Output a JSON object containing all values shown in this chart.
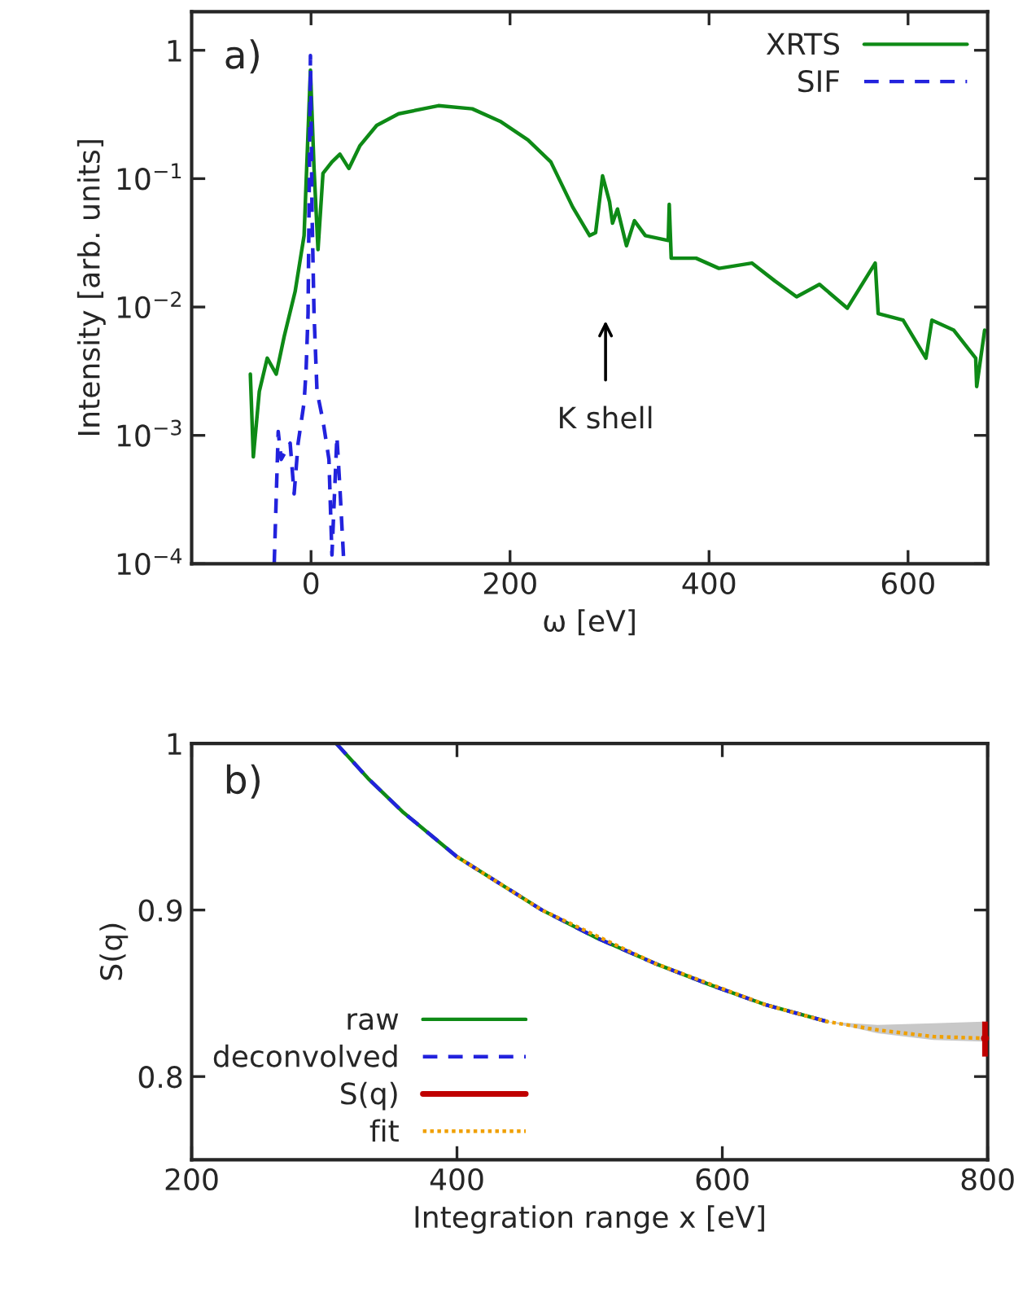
{
  "chart_data": [
    {
      "type": "line",
      "xlabel": "ω [eV]",
      "ylabel": "Intensity [arb. units]",
      "log": "y",
      "xlim": [
        -120,
        680
      ],
      "xticks": [
        0,
        200,
        400,
        600
      ],
      "ylim": [
        0.0001,
        2
      ],
      "yticks": [
        {
          "value": 0.0001,
          "label": "10$^{−4}$"
        },
        {
          "value": 0.001,
          "label": "10$^{−3}$"
        },
        {
          "value": 0.01,
          "label": "10$^{−2}$"
        },
        {
          "value": 0.1,
          "label": "10$^{−1}$"
        },
        {
          "value": 1,
          "label": "1"
        }
      ],
      "legend": "top right",
      "grid": false,
      "annotations": [
        "a)",
        "K shell"
      ],
      "series": [
        {
          "name": "XRTS",
          "color": "#0e8a16",
          "line_style": "solid",
          "x": [
            -61,
            -58,
            -52,
            -44,
            -35,
            -27,
            -16,
            -7,
            -0.6,
            3,
            7,
            12,
            21,
            29,
            38,
            49,
            66,
            88,
            128,
            162,
            190,
            218,
            241,
            263,
            280,
            286,
            293,
            300,
            303,
            308,
            317,
            325,
            336,
            359,
            360,
            362,
            387,
            410,
            443,
            466,
            488,
            511,
            539,
            567,
            570,
            595,
            618,
            624,
            646,
            668,
            669,
            677
          ],
          "values": [
            0.003,
            0.00068,
            0.0022,
            0.004,
            0.003,
            0.0059,
            0.0132,
            0.036,
            0.7,
            0.12,
            0.028,
            0.11,
            0.135,
            0.155,
            0.12,
            0.18,
            0.26,
            0.32,
            0.37,
            0.35,
            0.28,
            0.2,
            0.135,
            0.06,
            0.036,
            0.038,
            0.105,
            0.066,
            0.045,
            0.058,
            0.03,
            0.047,
            0.036,
            0.033,
            0.063,
            0.024,
            0.024,
            0.02,
            0.022,
            0.016,
            0.012,
            0.015,
            0.0098,
            0.022,
            0.0089,
            0.0079,
            0.004,
            0.0079,
            0.0066,
            0.004,
            0.0024,
            0.0066
          ]
        },
        {
          "name": "SIF",
          "color": "#2222dd",
          "line_style": "dashed",
          "x": [
            -37,
            -33,
            -30,
            -21,
            -17,
            -13,
            -7,
            -5,
            -3,
            -0.6,
            1,
            3,
            6,
            12,
            18,
            21,
            26,
            29,
            33
          ],
          "values": [
            0.0001,
            0.00107,
            0.00065,
            0.00087,
            0.00035,
            0.00087,
            0.0018,
            0.0032,
            0.0089,
            0.91,
            0.054,
            0.0089,
            0.0022,
            0.0013,
            0.00065,
            0.000117,
            0.00098,
            0.00039,
            0.0001
          ]
        }
      ]
    },
    {
      "type": "line",
      "xlabel": "Integration range x [eV]",
      "ylabel": "S(q)",
      "xlim": [
        200,
        800
      ],
      "xticks": [
        200,
        400,
        600,
        800
      ],
      "ylim": [
        0.75,
        1
      ],
      "yticks": [
        0.8,
        0.9,
        {
          "value": 1,
          "label": "1"
        }
      ],
      "legend": "lower left",
      "grid": false,
      "annotations": [
        "b)"
      ],
      "series": [
        {
          "name": "raw",
          "color": "#0e8a16",
          "line_style": "solid",
          "x": [
            309,
            333,
            359,
            400,
            430,
            464,
            506,
            549,
            591,
            633,
            679
          ],
          "values": [
            1.0,
            0.979,
            0.959,
            0.932,
            0.917,
            0.9,
            0.883,
            0.868,
            0.855,
            0.843,
            0.833
          ]
        },
        {
          "name": "deconvolved",
          "color": "#2222dd",
          "line_style": "dashed",
          "x": [
            309,
            333,
            359,
            400,
            430,
            464,
            506,
            549,
            591,
            633,
            679
          ],
          "values": [
            1.0,
            0.979,
            0.959,
            0.932,
            0.917,
            0.9,
            0.883,
            0.868,
            0.855,
            0.843,
            0.833
          ]
        },
        {
          "name": "S(q)",
          "type": "scatter",
          "color": "#c00000",
          "x": [
            798
          ],
          "values": [
            0.823
          ],
          "errors": [
            [
              0.812,
              0.833
            ]
          ]
        },
        {
          "name": "fit",
          "color": "#f0a000",
          "line_style": "dotted",
          "x": [
            400,
            464,
            549,
            633,
            679,
            717,
            759,
            797
          ],
          "values": [
            0.932,
            0.9,
            0.868,
            0.843,
            0.833,
            0.828,
            0.824,
            0.823
          ],
          "lower": [
            null,
            null,
            null,
            null,
            0.833,
            0.826,
            0.822,
            0.821
          ],
          "upper": [
            null,
            null,
            null,
            null,
            0.833,
            0.831,
            0.832,
            0.833
          ]
        }
      ]
    }
  ]
}
